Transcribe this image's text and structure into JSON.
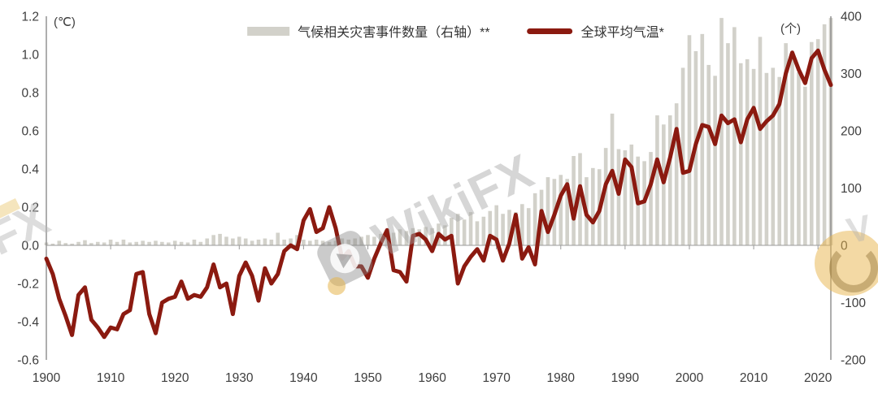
{
  "axes": {
    "left_unit": "(℃)",
    "right_unit": "(个)"
  },
  "legend": {
    "items": [
      {
        "label": "气候相关灾害事件数量（右轴）**",
        "type": "bar",
        "color": "#d2d1ca"
      },
      {
        "label": "全球平均气温*",
        "type": "line",
        "color": "#8b1a10"
      }
    ]
  },
  "watermark": {
    "text": "WikiFX",
    "fx_text": "FX"
  },
  "chart_data": {
    "type": "bar+line combo",
    "title": "",
    "x_label": "",
    "x": [
      1900,
      1901,
      1902,
      1903,
      1904,
      1905,
      1906,
      1907,
      1908,
      1909,
      1910,
      1911,
      1912,
      1913,
      1914,
      1915,
      1916,
      1917,
      1918,
      1919,
      1920,
      1921,
      1922,
      1923,
      1924,
      1925,
      1926,
      1927,
      1928,
      1929,
      1930,
      1931,
      1932,
      1933,
      1934,
      1935,
      1936,
      1937,
      1938,
      1939,
      1940,
      1941,
      1942,
      1943,
      1944,
      1945,
      1946,
      1947,
      1948,
      1949,
      1950,
      1951,
      1952,
      1953,
      1954,
      1955,
      1956,
      1957,
      1958,
      1959,
      1960,
      1961,
      1962,
      1963,
      1964,
      1965,
      1966,
      1967,
      1968,
      1969,
      1970,
      1971,
      1972,
      1973,
      1974,
      1975,
      1976,
      1977,
      1978,
      1979,
      1980,
      1981,
      1982,
      1983,
      1984,
      1985,
      1986,
      1987,
      1988,
      1989,
      1990,
      1991,
      1992,
      1993,
      1994,
      1995,
      1996,
      1997,
      1998,
      1999,
      2000,
      2001,
      2002,
      2003,
      2004,
      2005,
      2006,
      2007,
      2008,
      2009,
      2010,
      2011,
      2012,
      2013,
      2014,
      2015,
      2016,
      2017,
      2018,
      2019,
      2020,
      2021,
      2022
    ],
    "series": [
      {
        "name": "气候相关灾害事件数量（右轴）**",
        "type": "bar",
        "axis": "right",
        "color": "#d2d1ca",
        "values": [
          5,
          3,
          8,
          4,
          3,
          6,
          9,
          4,
          6,
          5,
          10,
          6,
          10,
          5,
          6,
          8,
          6,
          8,
          6,
          5,
          8,
          6,
          5,
          10,
          6,
          12,
          18,
          20,
          15,
          12,
          15,
          12,
          8,
          10,
          12,
          10,
          22,
          10,
          12,
          18,
          10,
          8,
          10,
          8,
          6,
          8,
          12,
          10,
          12,
          15,
          18,
          15,
          20,
          25,
          22,
          28,
          25,
          30,
          28,
          32,
          30,
          38,
          35,
          48,
          55,
          45,
          58,
          42,
          50,
          60,
          70,
          55,
          62,
          58,
          72,
          65,
          91,
          97,
          119,
          116,
          123,
          116,
          156,
          161,
          119,
          135,
          133,
          170,
          230,
          168,
          166,
          176,
          155,
          147,
          163,
          227,
          211,
          227,
          248,
          310,
          367,
          339,
          369,
          315,
          296,
          397,
          353,
          381,
          318,
          325,
          308,
          364,
          301,
          310,
          294,
          353,
          330,
          302,
          277,
          355,
          360,
          386,
          397
        ]
      },
      {
        "name": "全球平均气温*",
        "type": "line",
        "axis": "left",
        "color": "#8b1a10",
        "values": [
          -0.07,
          -0.15,
          -0.28,
          -0.37,
          -0.47,
          -0.26,
          -0.22,
          -0.39,
          -0.43,
          -0.48,
          -0.43,
          -0.44,
          -0.36,
          -0.34,
          -0.15,
          -0.14,
          -0.36,
          -0.46,
          -0.3,
          -0.28,
          -0.27,
          -0.19,
          -0.28,
          -0.26,
          -0.27,
          -0.22,
          -0.1,
          -0.22,
          -0.2,
          -0.36,
          -0.16,
          -0.09,
          -0.16,
          -0.29,
          -0.12,
          -0.2,
          -0.15,
          -0.03,
          0.0,
          -0.02,
          0.13,
          0.19,
          0.07,
          0.09,
          0.2,
          0.09,
          -0.07,
          -0.03,
          -0.11,
          -0.11,
          -0.17,
          -0.07,
          0.01,
          0.08,
          -0.13,
          -0.14,
          -0.19,
          0.05,
          0.06,
          0.03,
          -0.03,
          0.06,
          0.03,
          0.05,
          -0.2,
          -0.11,
          -0.06,
          -0.02,
          -0.08,
          0.05,
          0.03,
          -0.08,
          0.01,
          0.16,
          -0.07,
          -0.01,
          -0.1,
          0.18,
          0.07,
          0.16,
          0.26,
          0.32,
          0.14,
          0.31,
          0.16,
          0.12,
          0.18,
          0.32,
          0.39,
          0.27,
          0.45,
          0.41,
          0.22,
          0.23,
          0.32,
          0.45,
          0.33,
          0.46,
          0.61,
          0.38,
          0.39,
          0.53,
          0.63,
          0.62,
          0.53,
          0.68,
          0.64,
          0.66,
          0.54,
          0.66,
          0.72,
          0.61,
          0.65,
          0.68,
          0.74,
          0.9,
          1.01,
          0.92,
          0.85,
          0.98,
          1.02,
          0.92,
          0.84
        ]
      }
    ],
    "left_axis": {
      "unit": "(℃)",
      "min": -0.6,
      "max": 1.2,
      "ticks": [
        "1.2",
        "1.0",
        "0.8",
        "0.6",
        "0.4",
        "0.2",
        "0.0",
        "-0.2",
        "-0.4",
        "-0.6"
      ]
    },
    "right_axis": {
      "unit": "(个)",
      "min": -200,
      "max": 400,
      "ticks": [
        "400",
        "300",
        "200",
        "100",
        "0",
        "-100",
        "-200"
      ]
    },
    "x_ticks": [
      "1900",
      "1910",
      "1920",
      "1930",
      "1940",
      "1950",
      "1960",
      "1970",
      "1980",
      "1990",
      "2000",
      "2010",
      "2020"
    ],
    "grid": "off",
    "legend_position": "top-center"
  }
}
